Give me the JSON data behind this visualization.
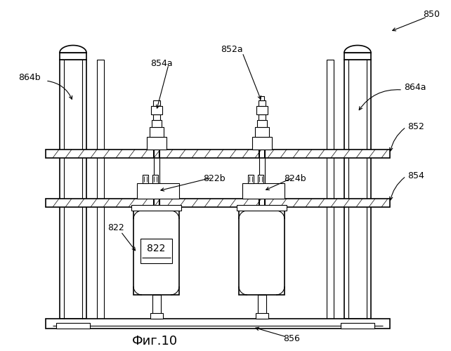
{
  "title": "Фиг.10",
  "labels": {
    "850": "850",
    "856": "856",
    "854a": "854a",
    "852a": "852a",
    "864b": "864b",
    "864a": "864a",
    "852": "852",
    "854": "854",
    "822b": "822b",
    "824b": "824b",
    "822": "822"
  },
  "bg_color": "#ffffff",
  "lc": "#000000",
  "figsize": [
    6.42,
    5.0
  ],
  "dpi": 100
}
